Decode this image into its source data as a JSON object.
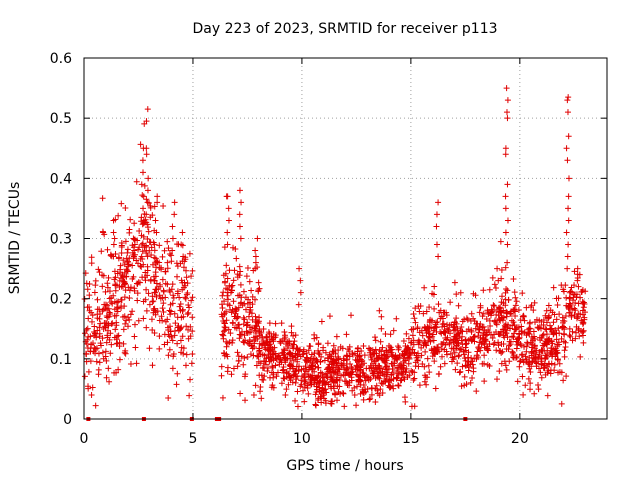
{
  "chart_data": {
    "type": "scatter",
    "title": "Day 223 of 2023, SRMTID for receiver p113",
    "xlabel": "GPS time / hours",
    "ylabel": "SRMTID / TECUs",
    "xlim": [
      0,
      24
    ],
    "ylim": [
      0,
      0.6
    ],
    "x_ticks": [
      0,
      5,
      10,
      15,
      20
    ],
    "x_tick_labels": [
      "0",
      "5",
      "10",
      "15",
      "20"
    ],
    "y_ticks": [
      0,
      0.1,
      0.2,
      0.3,
      0.4,
      0.5,
      0.6
    ],
    "y_tick_labels": [
      "0",
      "0.1",
      "0.2",
      "0.3",
      "0.4",
      "0.5",
      "0.6"
    ],
    "grid": true,
    "marker": "plus",
    "color": "#e00000",
    "series": [
      {
        "name": "SRMTID",
        "segments": [
          {
            "x_start": 0.0,
            "x_end": 5.0,
            "profile": [
              [
                0.0,
                0.12
              ],
              [
                0.6,
                0.15
              ],
              [
                1.0,
                0.18
              ],
              [
                1.5,
                0.2
              ],
              [
                2.0,
                0.22
              ],
              [
                2.5,
                0.25
              ],
              [
                2.8,
                0.28
              ],
              [
                3.1,
                0.24
              ],
              [
                3.5,
                0.2
              ],
              [
                4.0,
                0.18
              ],
              [
                4.5,
                0.19
              ],
              [
                5.0,
                0.15
              ]
            ],
            "spread": 0.06,
            "count": 520
          },
          {
            "x_start": 6.3,
            "x_end": 8.2,
            "profile": [
              [
                6.3,
                0.17
              ],
              [
                6.8,
                0.18
              ],
              [
                7.3,
                0.15
              ],
              [
                7.8,
                0.17
              ],
              [
                8.2,
                0.12
              ]
            ],
            "spread": 0.05,
            "count": 220
          },
          {
            "x_start": 8.2,
            "x_end": 15.0,
            "profile": [
              [
                8.2,
                0.11
              ],
              [
                9.0,
                0.1
              ],
              [
                9.8,
                0.09
              ],
              [
                10.5,
                0.075
              ],
              [
                11.5,
                0.08
              ],
              [
                12.5,
                0.085
              ],
              [
                13.5,
                0.09
              ],
              [
                14.5,
                0.085
              ],
              [
                15.0,
                0.1
              ]
            ],
            "spread": 0.025,
            "count": 760
          },
          {
            "x_start": 15.0,
            "x_end": 20.2,
            "profile": [
              [
                15.0,
                0.11
              ],
              [
                15.8,
                0.14
              ],
              [
                16.5,
                0.15
              ],
              [
                17.3,
                0.12
              ],
              [
                18.0,
                0.13
              ],
              [
                18.8,
                0.15
              ],
              [
                19.3,
                0.16
              ],
              [
                19.8,
                0.15
              ],
              [
                20.2,
                0.13
              ]
            ],
            "spread": 0.035,
            "count": 520
          },
          {
            "x_start": 20.2,
            "x_end": 23.0,
            "profile": [
              [
                20.2,
                0.12
              ],
              [
                21.0,
                0.115
              ],
              [
                21.6,
                0.13
              ],
              [
                22.0,
                0.15
              ],
              [
                22.4,
                0.19
              ],
              [
                22.8,
                0.18
              ],
              [
                23.0,
                0.15
              ]
            ],
            "spread": 0.035,
            "count": 300
          }
        ],
        "spikes": [
          {
            "x": 1.4,
            "values": [
              0.33,
              0.31,
              0.3,
              0.29,
              0.27
            ]
          },
          {
            "x": 2.3,
            "values": [
              0.3,
              0.29,
              0.28,
              0.27
            ]
          },
          {
            "x": 2.7,
            "values": [
              0.45,
              0.43,
              0.41,
              0.39,
              0.37,
              0.35,
              0.33
            ]
          },
          {
            "x": 2.9,
            "values": [
              0.515,
              0.495,
              0.45,
              0.44,
              0.4,
              0.38,
              0.36,
              0.34
            ]
          },
          {
            "x": 3.3,
            "values": [
              0.37,
              0.36,
              0.33,
              0.31
            ]
          },
          {
            "x": 4.1,
            "values": [
              0.36,
              0.34,
              0.32,
              0.3,
              0.28
            ]
          },
          {
            "x": 4.5,
            "values": [
              0.31,
              0.29,
              0.27
            ]
          },
          {
            "x": 6.6,
            "values": [
              0.37,
              0.37,
              0.35,
              0.33,
              0.31,
              0.29
            ]
          },
          {
            "x": 7.2,
            "values": [
              0.38,
              0.36,
              0.34,
              0.32,
              0.3
            ]
          },
          {
            "x": 7.9,
            "values": [
              0.3,
              0.28,
              0.27,
              0.26,
              0.25
            ]
          },
          {
            "x": 9.9,
            "values": [
              0.25,
              0.23,
              0.21,
              0.19
            ]
          },
          {
            "x": 13.6,
            "values": [
              0.18,
              0.17,
              0.15
            ]
          },
          {
            "x": 16.2,
            "values": [
              0.36,
              0.34,
              0.32,
              0.29,
              0.27
            ]
          },
          {
            "x": 19.0,
            "values": [
              0.25,
              0.23
            ]
          },
          {
            "x": 19.4,
            "values": [
              0.55,
              0.53,
              0.51,
              0.5,
              0.45,
              0.44,
              0.39,
              0.37,
              0.35,
              0.33,
              0.31,
              0.29,
              0.26
            ]
          },
          {
            "x": 22.2,
            "values": [
              0.535,
              0.53,
              0.51,
              0.47,
              0.45,
              0.43,
              0.4,
              0.37,
              0.35,
              0.33,
              0.31,
              0.29,
              0.27,
              0.25
            ]
          },
          {
            "x": 22.7,
            "values": [
              0.25,
              0.24,
              0.23,
              0.22
            ]
          }
        ],
        "zero_points": [
          0.2,
          2.75,
          4.95,
          6.1,
          6.2,
          17.5
        ]
      }
    ]
  }
}
